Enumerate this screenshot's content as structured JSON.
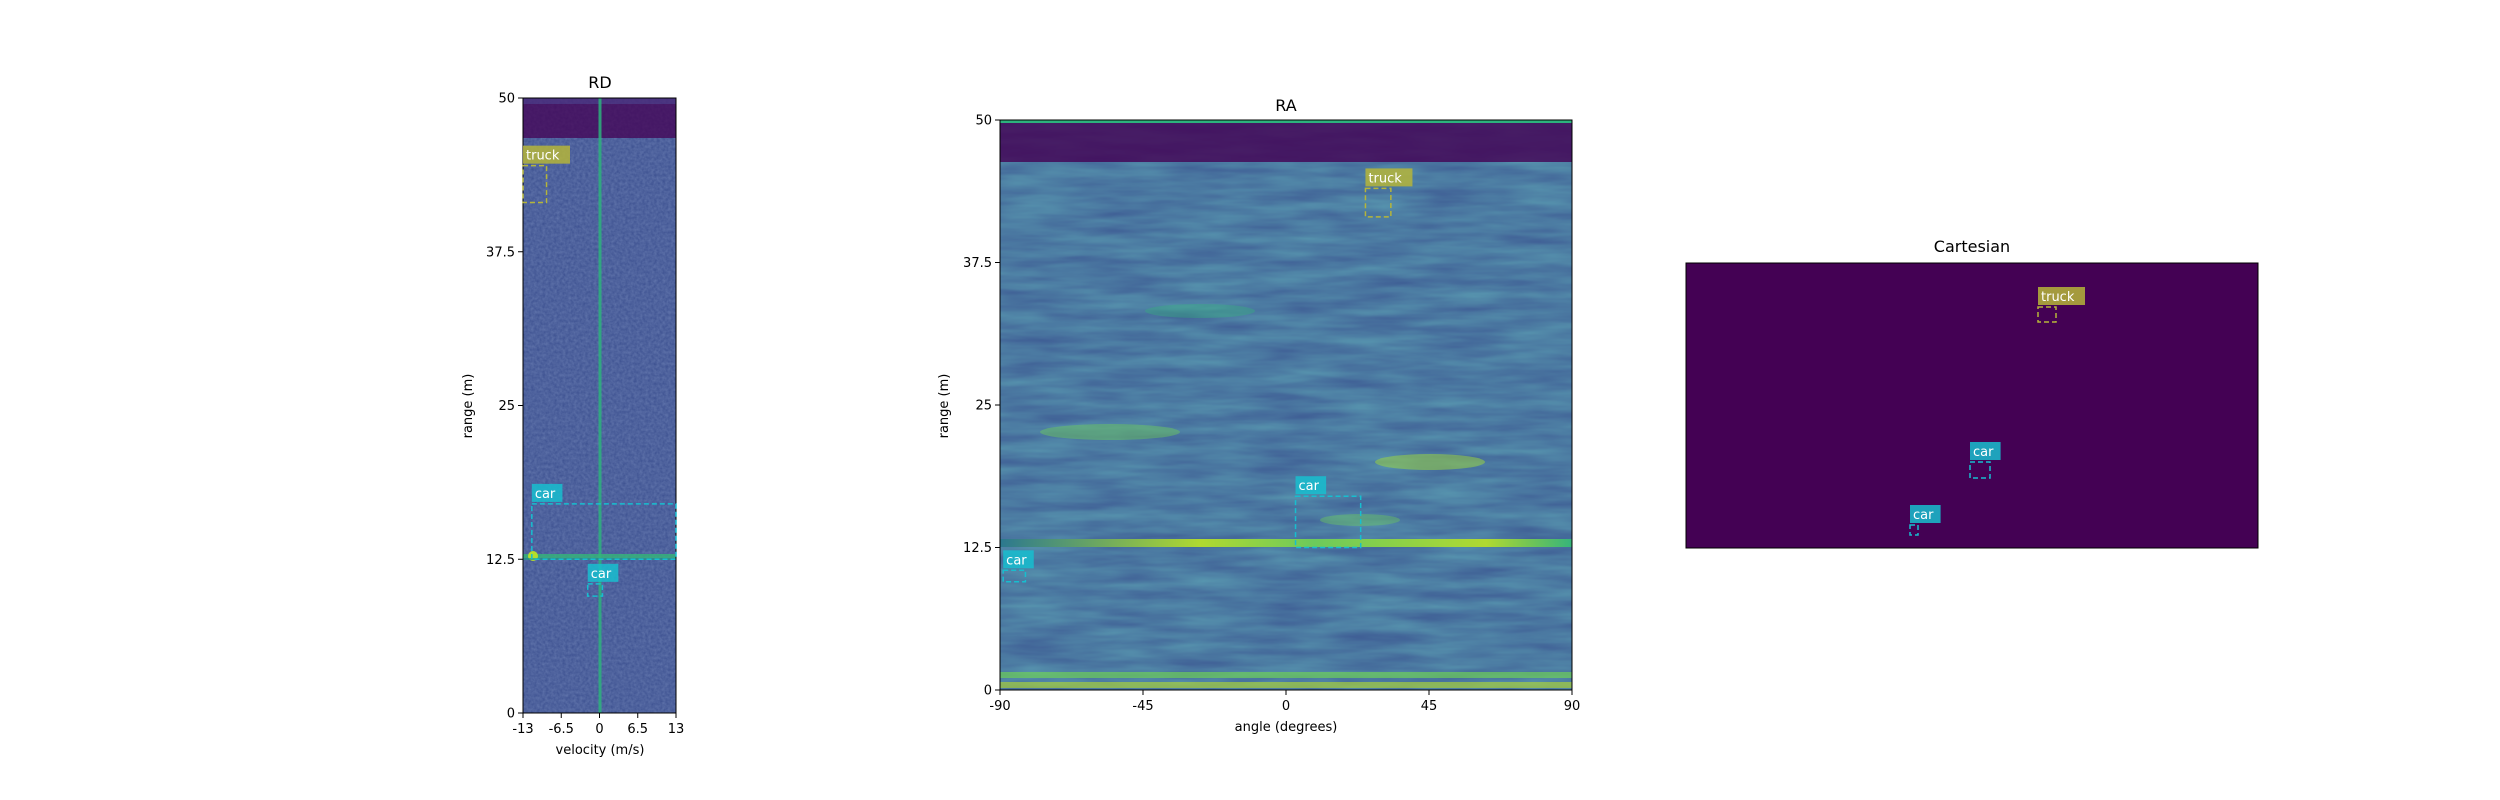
{
  "chart_data": [
    {
      "type": "heatmap",
      "title": "RD",
      "xlabel": "velocity (m/s)",
      "ylabel": "range (m)",
      "xlim": [
        -13,
        13
      ],
      "ylim": [
        0,
        50
      ],
      "x_ticks": [
        "-13",
        "-6.5",
        "0",
        "6.5",
        "13"
      ],
      "y_ticks": [
        "0",
        "12.5",
        "25",
        "37.5",
        "50"
      ],
      "colormap": "viridis",
      "boxes": [
        {
          "label": "truck",
          "color": "#b5b53a",
          "x": [
            -13,
            -9
          ],
          "y": [
            41.5,
            44.5
          ]
        },
        {
          "label": "car",
          "color": "#17becf",
          "x": [
            -11.5,
            13
          ],
          "y": [
            12.5,
            17
          ]
        },
        {
          "label": "car",
          "color": "#17becf",
          "x": [
            -2,
            0.5
          ],
          "y": [
            9.5,
            10.5
          ]
        }
      ]
    },
    {
      "type": "heatmap",
      "title": "RA",
      "xlabel": "angle (degrees)",
      "ylabel": "range (m)",
      "xlim": [
        -90,
        90
      ],
      "ylim": [
        0,
        50
      ],
      "x_ticks": [
        "-90",
        "-45",
        "0",
        "45",
        "90"
      ],
      "y_ticks": [
        "0",
        "12.5",
        "25",
        "37.5",
        "50"
      ],
      "colormap": "viridis",
      "boxes": [
        {
          "label": "truck",
          "color": "#b5b53a",
          "x": [
            25,
            33
          ],
          "y": [
            41.5,
            44
          ]
        },
        {
          "label": "car",
          "color": "#17becf",
          "x": [
            3,
            23.5
          ],
          "y": [
            12.5,
            17
          ]
        },
        {
          "label": "car",
          "color": "#17becf",
          "x": [
            -89,
            -82
          ],
          "y": [
            9.5,
            10.5
          ]
        }
      ]
    },
    {
      "type": "heatmap",
      "title": "Cartesian",
      "xlabel": "",
      "ylabel": "",
      "background": "#440154",
      "boxes": [
        {
          "label": "truck",
          "color": "#b5b53a"
        },
        {
          "label": "car",
          "color": "#17becf"
        },
        {
          "label": "car",
          "color": "#17becf"
        }
      ]
    }
  ]
}
